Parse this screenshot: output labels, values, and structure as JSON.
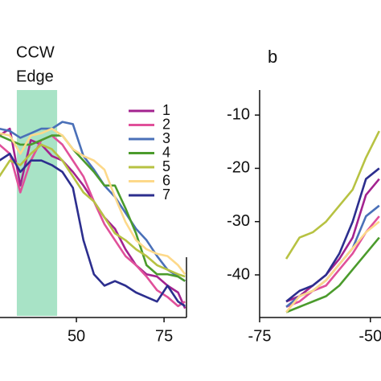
{
  "chart_data": [
    {
      "type": "line",
      "annotations": [
        "CCW",
        "Edge"
      ],
      "span": [
        33,
        44.5
      ],
      "span_color": "#a8e3c6",
      "xlim": [
        28.2,
        81.4
      ],
      "ylim": [
        0,
        100
      ],
      "xticks": [
        50,
        75
      ],
      "legend": "upper right",
      "x": [
        28,
        31,
        34,
        37,
        40,
        43,
        46,
        49,
        52,
        55,
        58,
        61,
        64,
        67,
        70,
        73,
        76,
        79,
        81
      ],
      "series": [
        {
          "name": "1",
          "color": "#a3238f",
          "values": [
            80,
            83,
            58,
            78,
            76,
            71,
            69,
            64,
            58,
            51,
            44,
            39,
            30,
            23,
            19,
            18,
            14,
            11,
            4
          ]
        },
        {
          "name": "2",
          "color": "#e0509a",
          "values": [
            76,
            72,
            55,
            69,
            78,
            80,
            76,
            69,
            62,
            51,
            41,
            34,
            27,
            23,
            18,
            12,
            9,
            5,
            7
          ]
        },
        {
          "name": "3",
          "color": "#4a70b8",
          "values": [
            83,
            82,
            79,
            81,
            83,
            83,
            86,
            85,
            71,
            65,
            58,
            53,
            46,
            39,
            34,
            27,
            21,
            18,
            16
          ]
        },
        {
          "name": "4",
          "color": "#4b9b2c",
          "values": [
            80,
            78,
            76,
            76,
            78,
            80,
            80,
            74,
            69,
            64,
            58,
            58,
            48,
            37,
            23,
            19,
            19,
            18,
            16
          ]
        },
        {
          "name": "5",
          "color": "#b7c242",
          "values": [
            62,
            69,
            67,
            72,
            76,
            74,
            69,
            62,
            55,
            51,
            44,
            37,
            34,
            30,
            27,
            23,
            21,
            19,
            18
          ]
        },
        {
          "name": "6",
          "color": "#fdd98a",
          "values": [
            81,
            80,
            72,
            80,
            81,
            83,
            80,
            74,
            71,
            69,
            65,
            53,
            42,
            34,
            30,
            28,
            27,
            23,
            19
          ]
        },
        {
          "name": "7",
          "color": "#2c2e8e",
          "values": [
            69,
            72,
            64,
            69,
            69,
            67,
            64,
            57,
            34,
            19,
            14,
            16,
            14,
            11,
            9,
            7,
            14,
            7,
            5
          ]
        }
      ]
    },
    {
      "type": "line",
      "label": "b",
      "xlim": [
        -75,
        -47.6
      ],
      "ylim": [
        -48,
        -5.3
      ],
      "xticks": [
        -75,
        -50
      ],
      "yticks": [
        -10,
        -20,
        -30,
        -40
      ],
      "x": [
        -69,
        -66,
        -63,
        -60,
        -57,
        -54,
        -51,
        -48
      ],
      "series": [
        {
          "name": "1",
          "color": "#a3238f",
          "values": [
            -45,
            -44,
            -42,
            -40,
            -37,
            -33,
            -25,
            -22
          ]
        },
        {
          "name": "2",
          "color": "#e0509a",
          "values": [
            -46,
            -45,
            -43,
            -42,
            -39,
            -36,
            -32,
            -29
          ]
        },
        {
          "name": "3",
          "color": "#4a70b8",
          "values": [
            -46,
            -44,
            -43,
            -41,
            -38,
            -35,
            -29,
            -27
          ]
        },
        {
          "name": "4",
          "color": "#4b9b2c",
          "values": [
            -47,
            -46,
            -45,
            -44,
            -42,
            -39,
            -36,
            -33
          ]
        },
        {
          "name": "5",
          "color": "#b7c242",
          "values": [
            -37,
            -33,
            -32,
            -30,
            -27,
            -24,
            -18,
            -13
          ]
        },
        {
          "name": "6",
          "color": "#fdd98a",
          "values": [
            -47,
            -44,
            -43,
            -41,
            -38,
            -35,
            -32,
            -30
          ]
        },
        {
          "name": "7",
          "color": "#2c2e8e",
          "values": [
            -45,
            -43,
            -42,
            -40,
            -36,
            -30,
            -22,
            -20
          ]
        }
      ]
    }
  ]
}
